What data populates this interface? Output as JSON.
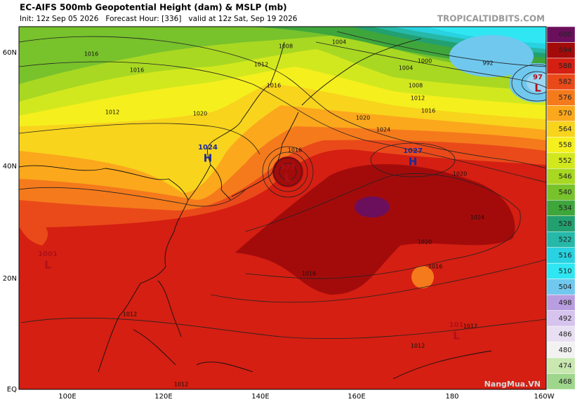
{
  "header": {
    "title": "EC-AIFS 500mb Geopotential Height (dam) & MSLP (mb)",
    "subtitle": "Init: 12z Sep 05 2026   Forecast Hour: [336]   valid at 12z Sat, Sep 19 2026",
    "brand": "TROPICALTIDBITS.COM"
  },
  "map": {
    "lat_labels": [
      "60N",
      "40N",
      "20N",
      "EQ"
    ],
    "lon_labels": [
      "100E",
      "120E",
      "140E",
      "160E",
      "180",
      "160W"
    ],
    "pressure_centers": [
      {
        "symbol": "H",
        "value": "1024"
      },
      {
        "symbol": "L",
        "value": "973"
      },
      {
        "symbol": "H",
        "value": "1027"
      },
      {
        "symbol": "L",
        "value": "97"
      },
      {
        "symbol": "L",
        "value": "1001"
      },
      {
        "symbol": "L",
        "value": "101"
      }
    ],
    "isobar_labels": [
      1016,
      1016,
      1012,
      1020,
      1016,
      1012,
      1008,
      1004,
      1004,
      1000,
      992,
      1008,
      1012,
      1016,
      1020,
      1024,
      1016,
      1020,
      1024,
      1020,
      1016,
      1016,
      1012,
      1012,
      1012,
      1012
    ],
    "watermark": "NangMua.VN"
  },
  "colorbar": {
    "levels": [
      {
        "value": 600,
        "color": "#6b0f5c"
      },
      {
        "value": 594,
        "color": "#a30b0b"
      },
      {
        "value": 588,
        "color": "#d41f12"
      },
      {
        "value": 582,
        "color": "#ea4a1a"
      },
      {
        "value": 576,
        "color": "#f57a1c"
      },
      {
        "value": 570,
        "color": "#fba81c"
      },
      {
        "value": 564,
        "color": "#f8d41c"
      },
      {
        "value": 558,
        "color": "#f5ef1e"
      },
      {
        "value": 552,
        "color": "#d2e81e"
      },
      {
        "value": 546,
        "color": "#a8d822"
      },
      {
        "value": 540,
        "color": "#78c22c"
      },
      {
        "value": 534,
        "color": "#3fa63c"
      },
      {
        "value": 528,
        "color": "#22a070"
      },
      {
        "value": 522,
        "color": "#26b8a8"
      },
      {
        "value": 516,
        "color": "#28d2e0"
      },
      {
        "value": 510,
        "color": "#30e6f2"
      },
      {
        "value": 504,
        "color": "#70c8ee"
      },
      {
        "value": 498,
        "color": "#b89ee0"
      },
      {
        "value": 492,
        "color": "#d6c4ee"
      },
      {
        "value": 486,
        "color": "#e8dff2"
      },
      {
        "value": 480,
        "color": "#f2f2f2"
      },
      {
        "value": 474,
        "color": "#c8e8b0"
      },
      {
        "value": 468,
        "color": "#9ed68c"
      }
    ]
  }
}
